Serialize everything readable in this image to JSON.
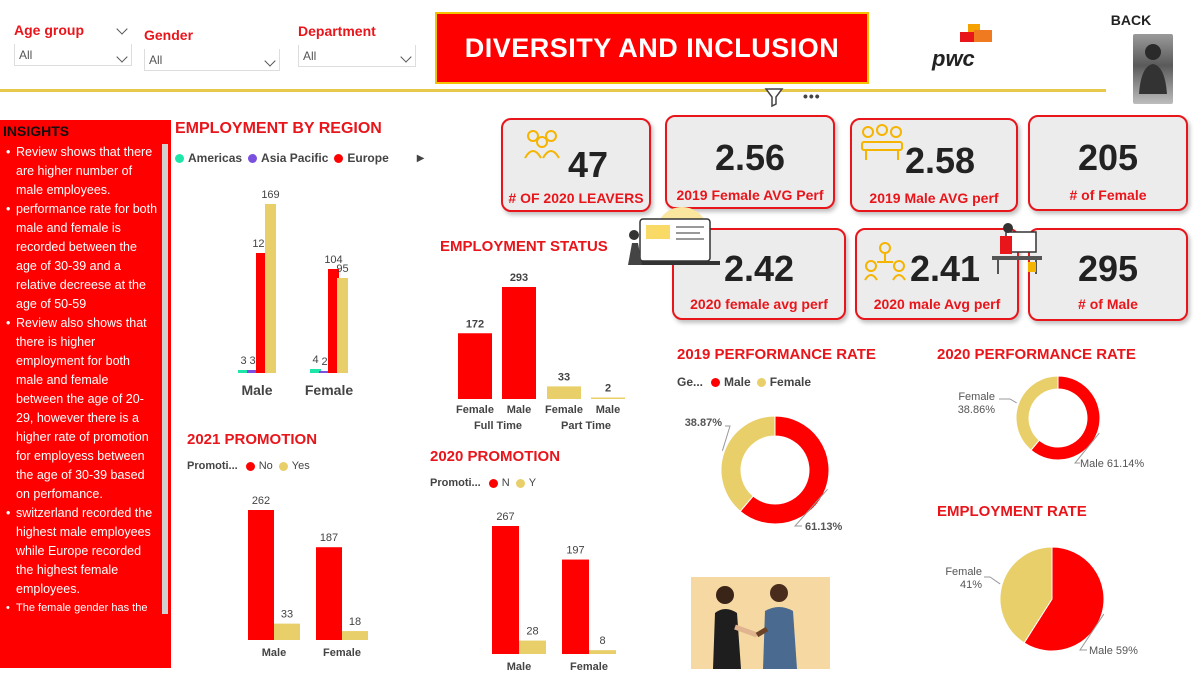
{
  "filters": [
    {
      "label": "Age group",
      "value": "All"
    },
    {
      "label": "Gender",
      "value": "All"
    },
    {
      "label": "Department",
      "value": "All"
    }
  ],
  "header": {
    "title": "DIVERSITY AND INCLUSION",
    "logo": "pwc",
    "back_label": "BACK"
  },
  "colors": {
    "red": "#ff0000",
    "gold": "#e8cf6a",
    "americas": "#1ee6a8",
    "asia_pacific": "#7b4fe0"
  },
  "icons": [
    "filter-icon",
    "more-options-icon",
    "people-icon",
    "meeting-icon",
    "laptop-person-icon",
    "org-people-icon",
    "desk-person-icon",
    "handshake-photo"
  ],
  "insights": {
    "title": "INSIGHTS",
    "items": [
      "Review shows that there are higher number of male employees.",
      "performance rate for both male and female is recorded between the age of 30-39 and a relative decreese at the age of 50-59",
      "Review also shows that there is higher employment for both male and female between the age of 20-29, however there is a higher rate of promotion for employess between the age of 30-39 based on perfomance.",
      "switzerland recorded the highest male employees while Europe recorded the highest female employees.",
      "The female gender has the"
    ]
  },
  "kpis": [
    {
      "value": "47",
      "label": "# OF 2020 LEAVERS"
    },
    {
      "value": "2.56",
      "label": "2019 Female AVG Perf"
    },
    {
      "value": "2.58",
      "label": "2019 Male AVG perf"
    },
    {
      "value": "205",
      "label": "# of Female"
    },
    {
      "value": "2.42",
      "label": "2020 female avg perf"
    },
    {
      "value": "2.41",
      "label": "2020 male Avg perf"
    },
    {
      "value": "295",
      "label": "# of Male"
    }
  ],
  "chart_data": [
    {
      "id": "region",
      "type": "bar",
      "title": "EMPLOYMENT BY REGION",
      "categories": [
        "Male",
        "Female"
      ],
      "series": [
        {
          "name": "Americas",
          "values": [
            3,
            4
          ],
          "color": "#1ee6a8"
        },
        {
          "name": "Asia Pacific",
          "values": [
            3,
            2
          ],
          "color": "#7b4fe0"
        },
        {
          "name": "Europe",
          "values": [
            120,
            104
          ],
          "color": "#ff0000"
        },
        {
          "name": "",
          "values": [
            169,
            95
          ],
          "color": "#e8cf6a"
        }
      ]
    },
    {
      "id": "status",
      "type": "bar",
      "title": "EMPLOYMENT STATUS",
      "categories": [
        "Female",
        "Male",
        "Female",
        "Male"
      ],
      "groups": [
        "Full Time",
        "Part Time"
      ],
      "values": [
        172,
        293,
        33,
        2
      ],
      "colors": [
        "#ff0000",
        "#ff0000",
        "#e8cf6a",
        "#e8cf6a"
      ]
    },
    {
      "id": "promo2021",
      "type": "bar",
      "title": "2021 PROMOTION",
      "legend_title": "Promoti...",
      "categories": [
        "Male",
        "Female"
      ],
      "series": [
        {
          "name": "No",
          "values": [
            262,
            187
          ],
          "color": "#ff0000"
        },
        {
          "name": "Yes",
          "values": [
            33,
            18
          ],
          "color": "#e8cf6a"
        }
      ]
    },
    {
      "id": "promo2020",
      "type": "bar",
      "title": "2020 PROMOTION",
      "legend_title": "Promoti...",
      "categories": [
        "Male",
        "Female"
      ],
      "series": [
        {
          "name": "N",
          "values": [
            267,
            197
          ],
          "color": "#ff0000"
        },
        {
          "name": "Y",
          "values": [
            28,
            8
          ],
          "color": "#e8cf6a"
        }
      ]
    },
    {
      "id": "perf2019",
      "type": "pie",
      "title": "2019 PERFORMANCE RATE",
      "legend_title": "Ge...",
      "donut": true,
      "slices": [
        {
          "name": "Male",
          "value": 61.13,
          "label": "61.13%",
          "color": "#ff0000"
        },
        {
          "name": "Female",
          "value": 38.87,
          "label": "38.87%",
          "color": "#e8cf6a"
        }
      ]
    },
    {
      "id": "perf2020",
      "type": "pie",
      "title": "2020 PERFORMANCE RATE",
      "donut": true,
      "slices": [
        {
          "name": "Male",
          "value": 61.14,
          "label": "Male 61.14%",
          "color": "#ff0000"
        },
        {
          "name": "Female",
          "value": 38.86,
          "label": "Female 38.86%",
          "color": "#e8cf6a"
        }
      ]
    },
    {
      "id": "emprate",
      "type": "pie",
      "title": "EMPLOYMENT RATE",
      "donut": false,
      "slices": [
        {
          "name": "Male",
          "value": 59,
          "label": "Male 59%",
          "color": "#ff0000"
        },
        {
          "name": "Female",
          "value": 41,
          "label": "Female 41%",
          "color": "#e8cf6a"
        }
      ]
    }
  ]
}
